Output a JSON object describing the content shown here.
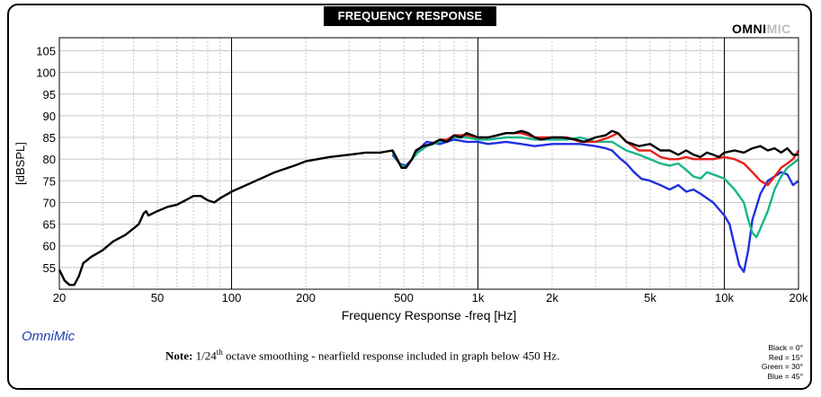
{
  "header": {
    "title": "FREQUENCY RESPONSE"
  },
  "logo": {
    "part1": "OMNI",
    "part2": "MIC"
  },
  "brand_label": "OmniMic",
  "note": {
    "prefix": "Note:",
    "smoothing_before": "1/24",
    "smoothing_sup": "th",
    "smoothing_after": " octave smoothing - nearfield response included in graph below 450 Hz."
  },
  "legend": [
    {
      "label": "Black = 0°",
      "color": "#000000"
    },
    {
      "label": "Red = 15°",
      "color": "#e8201a"
    },
    {
      "label": "Green = 30°",
      "color": "#17b58a"
    },
    {
      "label": "Blue = 45°",
      "color": "#1f2fe0"
    }
  ],
  "chart_data": {
    "type": "line",
    "xlabel": "Frequency Response -freq [Hz]",
    "ylabel": "[dBSPL]",
    "x_scale": "log",
    "xlim": [
      20,
      20000
    ],
    "ylim": [
      50,
      108
    ],
    "x_ticks": [
      {
        "v": 20,
        "label": "20"
      },
      {
        "v": 50,
        "label": "50"
      },
      {
        "v": 100,
        "label": "100"
      },
      {
        "v": 200,
        "label": "200"
      },
      {
        "v": 500,
        "label": "500"
      },
      {
        "v": 1000,
        "label": "1k"
      },
      {
        "v": 2000,
        "label": "2k"
      },
      {
        "v": 5000,
        "label": "5k"
      },
      {
        "v": 10000,
        "label": "10k"
      },
      {
        "v": 20000,
        "label": "20k"
      }
    ],
    "y_ticks": [
      55,
      60,
      65,
      70,
      75,
      80,
      85,
      90,
      95,
      100,
      105
    ],
    "grid": true,
    "series": [
      {
        "name": "Black = 0°",
        "color": "#000000",
        "points": [
          [
            20,
            54.5
          ],
          [
            21,
            52
          ],
          [
            22,
            51
          ],
          [
            23,
            51
          ],
          [
            24,
            53
          ],
          [
            25,
            56
          ],
          [
            27,
            57.5
          ],
          [
            30,
            59
          ],
          [
            33,
            61
          ],
          [
            37,
            62.5
          ],
          [
            40,
            64
          ],
          [
            42,
            65
          ],
          [
            44,
            67.5
          ],
          [
            45,
            68
          ],
          [
            46,
            67
          ],
          [
            50,
            68
          ],
          [
            55,
            69
          ],
          [
            60,
            69.5
          ],
          [
            65,
            70.5
          ],
          [
            70,
            71.5
          ],
          [
            75,
            71.5
          ],
          [
            80,
            70.5
          ],
          [
            85,
            70
          ],
          [
            90,
            71
          ],
          [
            100,
            72.5
          ],
          [
            120,
            74.5
          ],
          [
            150,
            77
          ],
          [
            180,
            78.5
          ],
          [
            200,
            79.5
          ],
          [
            250,
            80.5
          ],
          [
            300,
            81
          ],
          [
            350,
            81.5
          ],
          [
            400,
            81.5
          ],
          [
            450,
            82
          ],
          [
            470,
            80
          ],
          [
            490,
            78
          ],
          [
            510,
            78
          ],
          [
            540,
            80
          ],
          [
            560,
            82
          ],
          [
            600,
            83
          ],
          [
            650,
            83.5
          ],
          [
            700,
            84.5
          ],
          [
            750,
            84
          ],
          [
            800,
            85.5
          ],
          [
            850,
            85
          ],
          [
            900,
            86
          ],
          [
            950,
            85.5
          ],
          [
            1000,
            85
          ],
          [
            1100,
            85
          ],
          [
            1200,
            85.5
          ],
          [
            1300,
            86
          ],
          [
            1400,
            86
          ],
          [
            1500,
            86.5
          ],
          [
            1600,
            86
          ],
          [
            1700,
            85
          ],
          [
            1800,
            84.5
          ],
          [
            2000,
            85
          ],
          [
            2200,
            85
          ],
          [
            2500,
            84.5
          ],
          [
            2700,
            84
          ],
          [
            3000,
            85
          ],
          [
            3300,
            85.5
          ],
          [
            3500,
            86.5
          ],
          [
            3700,
            86
          ],
          [
            4000,
            84
          ],
          [
            4500,
            83
          ],
          [
            5000,
            83.5
          ],
          [
            5500,
            82
          ],
          [
            6000,
            82
          ],
          [
            6500,
            81
          ],
          [
            7000,
            82
          ],
          [
            7500,
            81
          ],
          [
            8000,
            80.5
          ],
          [
            8500,
            81.5
          ],
          [
            9000,
            81
          ],
          [
            9500,
            80.5
          ],
          [
            10000,
            81.5
          ],
          [
            11000,
            82
          ],
          [
            12000,
            81.5
          ],
          [
            13000,
            82.5
          ],
          [
            14000,
            83
          ],
          [
            15000,
            82
          ],
          [
            16000,
            82.5
          ],
          [
            17000,
            81.5
          ],
          [
            18000,
            82.5
          ],
          [
            19000,
            81
          ],
          [
            20000,
            81
          ]
        ]
      },
      {
        "name": "Red = 15°",
        "color": "#e8201a",
        "points": [
          [
            450,
            82
          ],
          [
            470,
            80
          ],
          [
            490,
            78
          ],
          [
            510,
            78
          ],
          [
            540,
            80
          ],
          [
            560,
            82
          ],
          [
            600,
            83
          ],
          [
            650,
            83.5
          ],
          [
            700,
            84.5
          ],
          [
            750,
            84.5
          ],
          [
            800,
            85.5
          ],
          [
            900,
            85.5
          ],
          [
            1000,
            85
          ],
          [
            1100,
            85
          ],
          [
            1200,
            85.5
          ],
          [
            1300,
            86
          ],
          [
            1500,
            86
          ],
          [
            1700,
            85
          ],
          [
            2000,
            85
          ],
          [
            2300,
            85
          ],
          [
            2600,
            84
          ],
          [
            3000,
            84
          ],
          [
            3400,
            85
          ],
          [
            3700,
            86
          ],
          [
            4000,
            84
          ],
          [
            4500,
            82
          ],
          [
            5000,
            82
          ],
          [
            5500,
            80.5
          ],
          [
            6000,
            80
          ],
          [
            6500,
            80
          ],
          [
            7000,
            80.5
          ],
          [
            7500,
            80
          ],
          [
            8000,
            80
          ],
          [
            9000,
            80
          ],
          [
            10000,
            80.5
          ],
          [
            11000,
            80
          ],
          [
            12000,
            79
          ],
          [
            13000,
            77
          ],
          [
            14000,
            75
          ],
          [
            15000,
            74
          ],
          [
            16000,
            76
          ],
          [
            17000,
            78
          ],
          [
            18000,
            79
          ],
          [
            19000,
            80
          ],
          [
            20000,
            82
          ]
        ]
      },
      {
        "name": "Green = 30°",
        "color": "#17b58a",
        "points": [
          [
            450,
            81.5
          ],
          [
            480,
            79
          ],
          [
            510,
            78
          ],
          [
            540,
            80
          ],
          [
            570,
            81.5
          ],
          [
            620,
            83
          ],
          [
            700,
            84
          ],
          [
            800,
            85
          ],
          [
            900,
            85
          ],
          [
            1000,
            84.5
          ],
          [
            1100,
            84.5
          ],
          [
            1300,
            85
          ],
          [
            1500,
            85
          ],
          [
            1700,
            84.5
          ],
          [
            2000,
            84.5
          ],
          [
            2300,
            84.5
          ],
          [
            2600,
            85
          ],
          [
            3000,
            84
          ],
          [
            3500,
            84
          ],
          [
            4000,
            82
          ],
          [
            4500,
            81
          ],
          [
            5000,
            80
          ],
          [
            5500,
            79
          ],
          [
            6000,
            78.5
          ],
          [
            6500,
            79
          ],
          [
            7000,
            77.5
          ],
          [
            7500,
            76
          ],
          [
            8000,
            75.5
          ],
          [
            8500,
            77
          ],
          [
            9000,
            76.5
          ],
          [
            10000,
            75.5
          ],
          [
            11000,
            73
          ],
          [
            12000,
            70
          ],
          [
            12500,
            66
          ],
          [
            13000,
            63
          ],
          [
            13500,
            62
          ],
          [
            14000,
            64
          ],
          [
            15000,
            68
          ],
          [
            16000,
            73
          ],
          [
            17000,
            76
          ],
          [
            18000,
            78
          ],
          [
            19000,
            79
          ],
          [
            20000,
            80
          ]
        ]
      },
      {
        "name": "Blue = 45°",
        "color": "#1f2fe0",
        "points": [
          [
            450,
            81
          ],
          [
            480,
            79
          ],
          [
            510,
            78.5
          ],
          [
            540,
            80
          ],
          [
            580,
            82.5
          ],
          [
            620,
            84
          ],
          [
            700,
            83.5
          ],
          [
            800,
            84.5
          ],
          [
            900,
            84
          ],
          [
            1000,
            84
          ],
          [
            1100,
            83.5
          ],
          [
            1300,
            84
          ],
          [
            1500,
            83.5
          ],
          [
            1700,
            83
          ],
          [
            2000,
            83.5
          ],
          [
            2300,
            83.5
          ],
          [
            2600,
            83.5
          ],
          [
            3000,
            83
          ],
          [
            3300,
            82.5
          ],
          [
            3500,
            82
          ],
          [
            3800,
            80
          ],
          [
            4000,
            79
          ],
          [
            4300,
            77
          ],
          [
            4600,
            75.5
          ],
          [
            5000,
            75
          ],
          [
            5500,
            74
          ],
          [
            6000,
            73
          ],
          [
            6500,
            74
          ],
          [
            7000,
            72.5
          ],
          [
            7500,
            73
          ],
          [
            8000,
            72
          ],
          [
            9000,
            70
          ],
          [
            10000,
            67
          ],
          [
            10500,
            65
          ],
          [
            11000,
            60
          ],
          [
            11500,
            55.5
          ],
          [
            12000,
            54
          ],
          [
            12500,
            59
          ],
          [
            13000,
            66
          ],
          [
            14000,
            72
          ],
          [
            15000,
            75
          ],
          [
            16000,
            76
          ],
          [
            17000,
            77
          ],
          [
            18000,
            76.5
          ],
          [
            19000,
            74
          ],
          [
            20000,
            75
          ]
        ]
      }
    ]
  }
}
